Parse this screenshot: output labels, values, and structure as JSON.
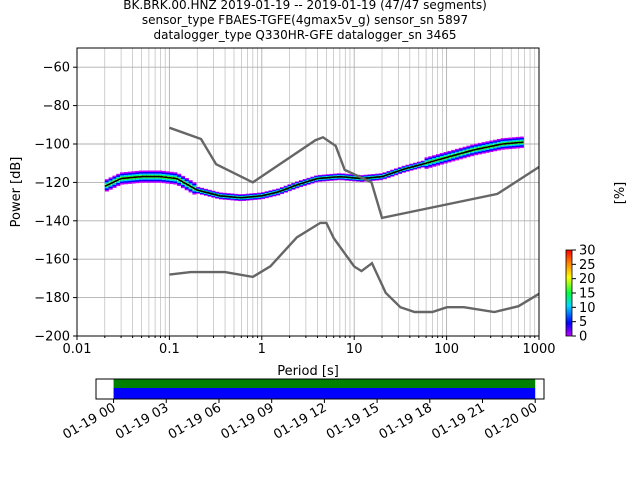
{
  "header": {
    "title_line1": "BK.BRK.00.HNZ   2019-01-19 -- 2019-01-19  (47/47 segments)",
    "title_line2": "sensor_type FBAES-TGFE(4gmax5v_g) sensor_sn 5897",
    "title_line3": "datalogger_type Q330HR-GFE datalogger_sn 3465"
  },
  "chart_data": [
    {
      "type": "heatmap",
      "title": "BK.BRK.00.HNZ   2019-01-19 -- 2019-01-19  (47/47 segments)",
      "xlabel": "Period [s]",
      "ylabel": "Power [dB]",
      "xscale": "log",
      "xlim": [
        0.01,
        1000
      ],
      "ylim": [
        -200,
        -50
      ],
      "xticks": [
        "0.01",
        "0.1",
        "1",
        "10",
        "100",
        "1000"
      ],
      "yticks": [
        "-200",
        "-180",
        "-160",
        "-140",
        "-120",
        "-100",
        "-80",
        "-60"
      ],
      "grid": true,
      "colorbar": {
        "label": "[%]",
        "min": 0,
        "max": 30,
        "ticks": [
          "0",
          "5",
          "10",
          "15",
          "20",
          "25",
          "30"
        ]
      },
      "mean_curve": {
        "x": [
          0.02,
          0.03,
          0.05,
          0.08,
          0.12,
          0.2,
          0.35,
          0.6,
          1.0,
          1.5,
          2.5,
          4,
          7,
          12,
          20,
          35,
          60,
          100,
          200,
          400,
          700
        ],
        "y": [
          -122,
          -118,
          -117,
          -117,
          -118,
          -124,
          -127,
          -128,
          -127,
          -125,
          -121,
          -118,
          -117,
          -118,
          -117,
          -113,
          -110,
          -107,
          -103,
          -100,
          -99
        ]
      },
      "high_noise_model": {
        "x": [
          0.1,
          0.22,
          0.32,
          0.8,
          3.8,
          4.6,
          6.3,
          7.9,
          15.4,
          20,
          354.8,
          1000
        ],
        "y": [
          -91.5,
          -97.4,
          -110.5,
          -120,
          -98,
          -96.5,
          -101,
          -113.5,
          -120,
          -138.5,
          -126,
          -112
        ]
      },
      "low_noise_model": {
        "x": [
          0.1,
          0.17,
          0.4,
          0.8,
          1.24,
          2.4,
          4.3,
          5.0,
          6.0,
          10,
          12,
          15.6,
          21.9,
          31.6,
          45,
          70,
          101,
          154,
          328,
          600,
          1000
        ],
        "y": [
          -168,
          -166.7,
          -166.7,
          -169.2,
          -163.7,
          -148.6,
          -141.1,
          -141.1,
          -149,
          -163.8,
          -166.2,
          -162.1,
          -177.5,
          -185,
          -187.5,
          -187.5,
          -185,
          -185,
          -187.5,
          -184.5,
          -178
        ]
      },
      "histogram_color_range": [
        "#c000ff",
        "#0000ff",
        "#00d8ff",
        "#00ff40",
        "#ffff00",
        "#ff8000",
        "#ff0000"
      ]
    },
    {
      "type": "bar",
      "title": "",
      "xlabel": "",
      "xticks": [
        "01-19 00",
        "01-19 03",
        "01-19 06",
        "01-19 09",
        "01-19 12",
        "01-19 15",
        "01-19 18",
        "01-19 21",
        "01-20 00"
      ],
      "xlim": [
        "01-18 23:00",
        "01-20 00:30"
      ],
      "series": [
        {
          "color": "#008000",
          "start": "01-19 00",
          "end": "01-20 00"
        },
        {
          "color": "#0000ff",
          "start": "01-19 00",
          "end": "01-20 00"
        }
      ]
    }
  ]
}
